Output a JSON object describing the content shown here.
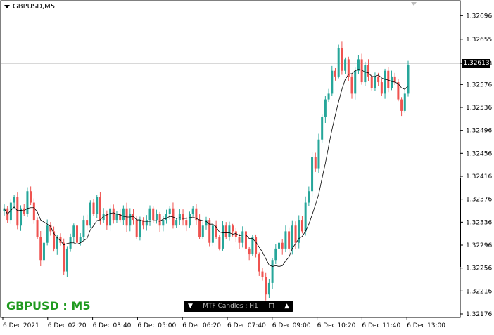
{
  "window": {
    "title": "GBPUSD,M5"
  },
  "overlay": {
    "symbol_label": "GBPUSD : M5"
  },
  "mtf_panel": {
    "down_btn": "▼",
    "label": "MTF Candles : H1",
    "box_btn": "□",
    "up_btn": "▲"
  },
  "current_price": "1.32613",
  "chart_data": {
    "type": "candlestick",
    "series": [
      {
        "name": "",
        "kind": "candles"
      }
    ],
    "y_ticks": [
      "1.32696",
      "1.32655",
      "1.32613",
      "1.32576",
      "1.32536",
      "1.32496",
      "1.32456",
      "1.32416",
      "1.32376",
      "1.32336",
      "1.32296",
      "1.32256",
      "1.32216",
      "1.32176"
    ],
    "x_ticks": [
      "6 Dec 2021",
      "6 Dec 02:20",
      "6 Dec 03:40",
      "6 Dec 05:00",
      "6 Dec 06:20",
      "6 Dec 07:40",
      "6 Dec 09:00",
      "6 Dec 10:20",
      "6 Dec 11:40",
      "6 Dec 13:00"
    ],
    "ylim": [
      1.32176,
      1.32716
    ],
    "current_price_line": 1.32613,
    "colors": {
      "up": "#26a69a",
      "down": "#ef5350",
      "ma": "#000000",
      "grid_line": "#c0c0c0"
    },
    "closes": [
      1.3236,
      1.3234,
      1.3237,
      1.3238,
      1.3233,
      1.3236,
      1.3235,
      1.3239,
      1.3237,
      1.3234,
      1.3231,
      1.3227,
      1.323,
      1.3233,
      1.3232,
      1.3229,
      1.3231,
      1.323,
      1.3225,
      1.3229,
      1.3231,
      1.3233,
      1.323,
      1.3231,
      1.3234,
      1.3233,
      1.3237,
      1.3235,
      1.3238,
      1.3234,
      1.3235,
      1.3233,
      1.3236,
      1.3234,
      1.3235,
      1.3234,
      1.3236,
      1.3233,
      1.3235,
      1.3234,
      1.3231,
      1.3234,
      1.3233,
      1.3234,
      1.3236,
      1.3234,
      1.3235,
      1.3233,
      1.3234,
      1.3235,
      1.3236,
      1.3233,
      1.3234,
      1.3235,
      1.3234,
      1.3233,
      1.3235,
      1.3236,
      1.3234,
      1.3231,
      1.3233,
      1.3234,
      1.323,
      1.3233,
      1.3231,
      1.3229,
      1.3233,
      1.3231,
      1.3233,
      1.3232,
      1.3231,
      1.323,
      1.3232,
      1.3229,
      1.3228,
      1.3231,
      1.3228,
      1.3225,
      1.3224,
      1.3221,
      1.3223,
      1.3227,
      1.3229,
      1.323,
      1.3229,
      1.3232,
      1.3229,
      1.3233,
      1.323,
      1.3234,
      1.3232,
      1.3237,
      1.3239,
      1.3245,
      1.3243,
      1.3248,
      1.3252,
      1.3255,
      1.3256,
      1.326,
      1.3259,
      1.3264,
      1.326,
      1.3262,
      1.3259,
      1.3256,
      1.326,
      1.3262,
      1.3258,
      1.3261,
      1.3259,
      1.3257,
      1.3259,
      1.3258,
      1.3256,
      1.326,
      1.3257,
      1.3259,
      1.3258,
      1.3255,
      1.3253,
      1.3256,
      1.3261
    ]
  }
}
